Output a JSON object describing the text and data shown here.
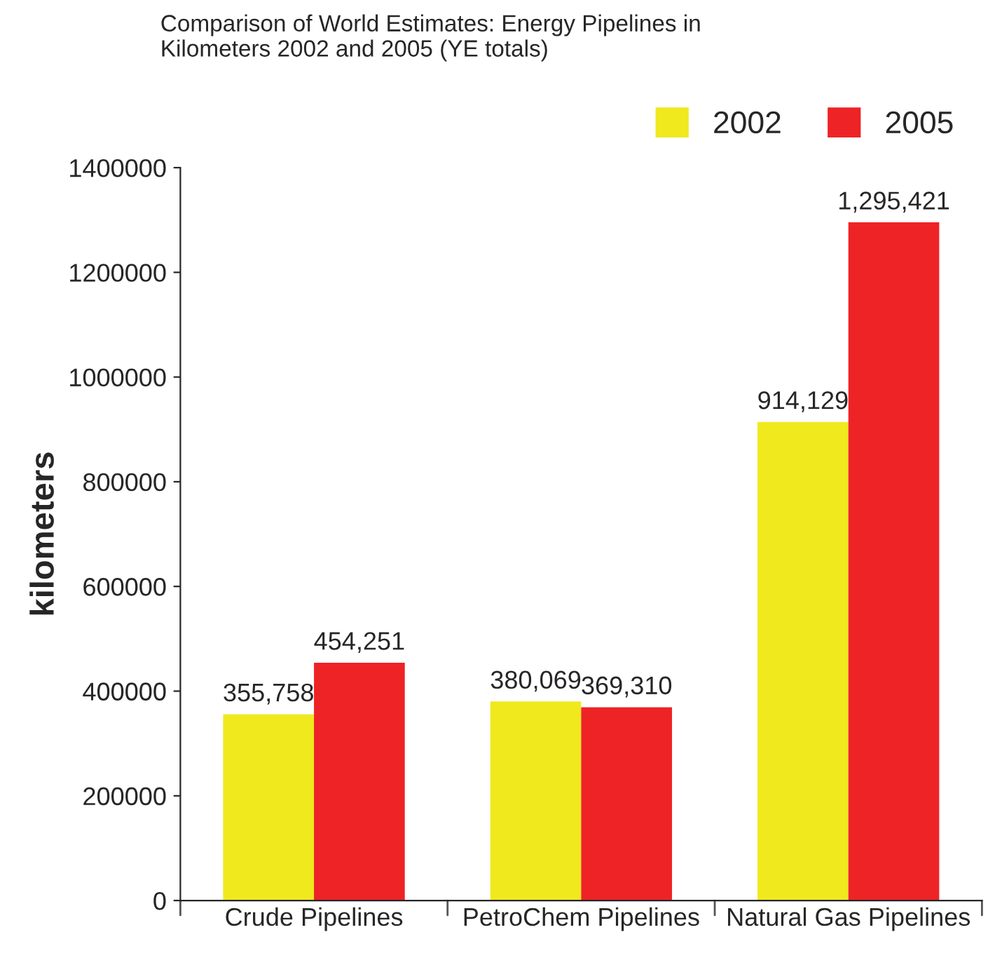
{
  "chart_data": {
    "type": "bar",
    "title": "Comparison of World Estimates: Energy Pipelines in\nKilometers 2002 and 2005 (YE totals)",
    "ylabel": "kilometers",
    "categories": [
      "Crude Pipelines",
      "PetroChem Pipelines",
      "Natural Gas Pipelines"
    ],
    "series": [
      {
        "name": "2002",
        "color": "#f0e91e",
        "values": [
          355758,
          380069,
          914129
        ],
        "value_labels": [
          "355,758",
          "380,069",
          "914,129"
        ]
      },
      {
        "name": "2005",
        "color": "#ee2326",
        "values": [
          454251,
          369310,
          1295421
        ],
        "value_labels": [
          "454,251",
          "369,310",
          "1,295,421"
        ]
      }
    ],
    "ylim": [
      0,
      1400000
    ],
    "yticks": [
      0,
      200000,
      400000,
      600000,
      800000,
      1000000,
      1200000,
      1400000
    ],
    "grid": false,
    "legend": "top right"
  }
}
